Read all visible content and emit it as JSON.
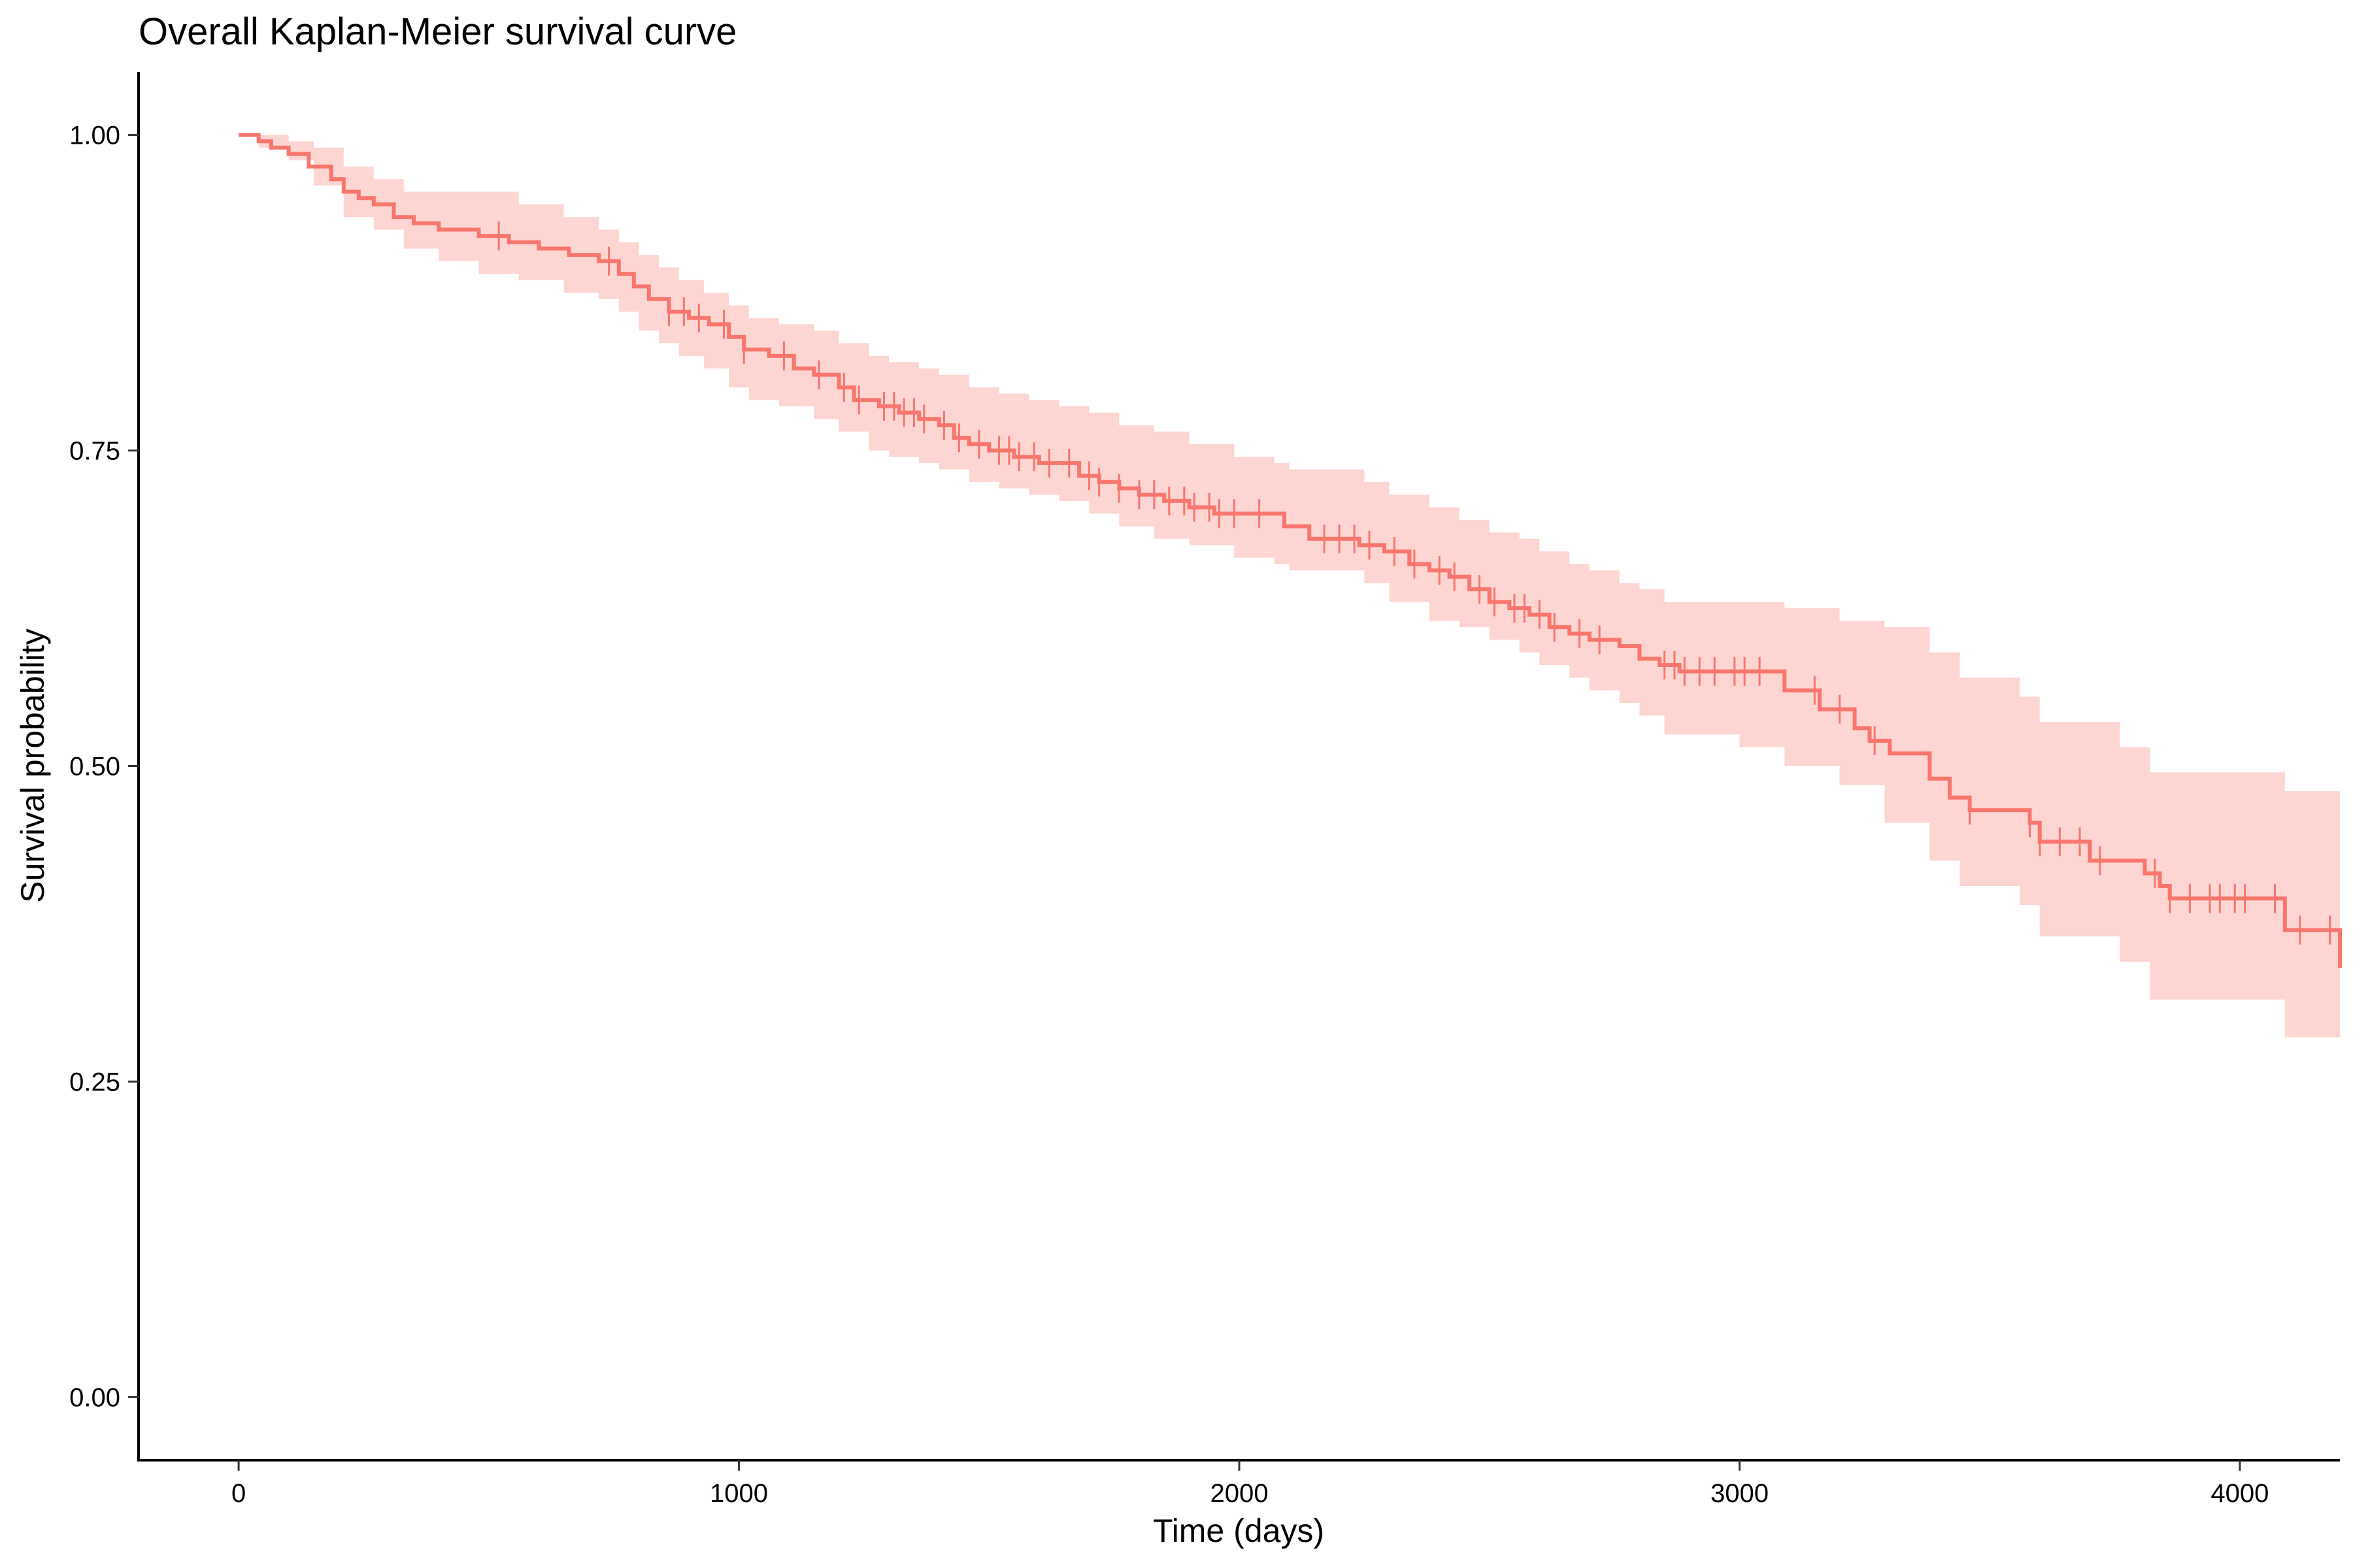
{
  "chart_data": {
    "type": "line",
    "chart_style": "kaplan-meier-step-with-confidence-band",
    "title": "Overall Kaplan-Meier survival curve",
    "xlabel": "Time (days)",
    "ylabel": "Survival probability",
    "xlim": [
      -200,
      4200
    ],
    "ylim": [
      -0.05,
      1.05
    ],
    "x_ticks": [
      0,
      1000,
      2000,
      3000,
      4000
    ],
    "x_tick_labels": [
      "0",
      "1000",
      "2000",
      "3000",
      "4000"
    ],
    "y_ticks": [
      0,
      0.25,
      0.5,
      0.75,
      1
    ],
    "y_tick_labels": [
      "0.00",
      "0.25",
      "0.50",
      "0.75",
      "1.00"
    ],
    "grid": false,
    "legend": "none",
    "line_color": "#F8766D",
    "band_color": "#FDD5D2",
    "series": [
      {
        "survival": {
          "x": [
            0,
            40,
            65,
            100,
            140,
            185,
            210,
            240,
            270,
            310,
            350,
            400,
            480,
            540,
            600,
            660,
            720,
            760,
            790,
            820,
            860,
            900,
            940,
            980,
            1010,
            1060,
            1110,
            1150,
            1200,
            1230,
            1280,
            1320,
            1360,
            1400,
            1430,
            1460,
            1500,
            1550,
            1600,
            1640,
            1680,
            1720,
            1760,
            1800,
            1850,
            1900,
            1950,
            2000,
            2050,
            2090,
            2140,
            2190,
            2240,
            2290,
            2340,
            2380,
            2420,
            2460,
            2500,
            2540,
            2580,
            2620,
            2660,
            2700,
            2760,
            2800,
            2840,
            2880,
            3000,
            3090,
            3160,
            3230,
            3260,
            3300,
            3380,
            3420,
            3460,
            3580,
            3600,
            3700,
            3810,
            3840,
            3860,
            4000,
            4090,
            4200
          ],
          "y": [
            1,
            0.995,
            0.99,
            0.985,
            0.975,
            0.965,
            0.955,
            0.95,
            0.945,
            0.935,
            0.93,
            0.925,
            0.92,
            0.915,
            0.91,
            0.905,
            0.9,
            0.89,
            0.88,
            0.87,
            0.86,
            0.855,
            0.85,
            0.84,
            0.83,
            0.825,
            0.815,
            0.81,
            0.8,
            0.79,
            0.785,
            0.78,
            0.775,
            0.77,
            0.76,
            0.755,
            0.75,
            0.745,
            0.74,
            0.74,
            0.73,
            0.725,
            0.72,
            0.715,
            0.71,
            0.705,
            0.7,
            0.7,
            0.7,
            0.69,
            0.68,
            0.68,
            0.675,
            0.67,
            0.66,
            0.655,
            0.65,
            0.64,
            0.63,
            0.625,
            0.62,
            0.61,
            0.605,
            0.6,
            0.595,
            0.585,
            0.58,
            0.575,
            0.575,
            0.56,
            0.545,
            0.53,
            0.52,
            0.51,
            0.49,
            0.475,
            0.465,
            0.455,
            0.44,
            0.425,
            0.415,
            0.405,
            0.395,
            0.395,
            0.37,
            0.34
          ]
        },
        "lower": {
          "x": [
            0,
            40,
            100,
            150,
            210,
            270,
            330,
            400,
            480,
            560,
            650,
            720,
            760,
            800,
            840,
            880,
            930,
            980,
            1020,
            1080,
            1150,
            1200,
            1260,
            1300,
            1360,
            1400,
            1460,
            1520,
            1580,
            1640,
            1700,
            1760,
            1830,
            1900,
            1990,
            2070,
            2100,
            2250,
            2300,
            2380,
            2440,
            2500,
            2560,
            2600,
            2660,
            2700,
            2760,
            2800,
            2850,
            3000,
            3090,
            3200,
            3290,
            3380,
            3440,
            3560,
            3600,
            3760,
            3820,
            4090,
            4200
          ],
          "y": [
            1,
            0.99,
            0.98,
            0.96,
            0.935,
            0.925,
            0.91,
            0.9,
            0.89,
            0.885,
            0.875,
            0.87,
            0.86,
            0.845,
            0.835,
            0.825,
            0.815,
            0.8,
            0.79,
            0.785,
            0.775,
            0.765,
            0.75,
            0.745,
            0.74,
            0.735,
            0.725,
            0.72,
            0.715,
            0.71,
            0.7,
            0.69,
            0.68,
            0.675,
            0.665,
            0.66,
            0.655,
            0.645,
            0.63,
            0.615,
            0.61,
            0.6,
            0.59,
            0.58,
            0.57,
            0.56,
            0.55,
            0.54,
            0.525,
            0.515,
            0.5,
            0.485,
            0.455,
            0.425,
            0.405,
            0.39,
            0.365,
            0.345,
            0.315,
            0.285,
            0.25
          ]
        },
        "upper": {
          "x": [
            0,
            40,
            100,
            150,
            210,
            270,
            330,
            400,
            560,
            650,
            720,
            760,
            800,
            840,
            880,
            930,
            980,
            1020,
            1080,
            1150,
            1200,
            1260,
            1300,
            1360,
            1400,
            1460,
            1520,
            1580,
            1640,
            1700,
            1760,
            1830,
            1900,
            1990,
            2070,
            2100,
            2250,
            2300,
            2380,
            2440,
            2500,
            2560,
            2600,
            2660,
            2700,
            2760,
            2800,
            2850,
            3000,
            3090,
            3200,
            3290,
            3380,
            3440,
            3560,
            3600,
            3760,
            3820,
            4090,
            4200
          ],
          "y": [
            1,
            1,
            0.995,
            0.99,
            0.975,
            0.965,
            0.955,
            0.955,
            0.945,
            0.935,
            0.925,
            0.915,
            0.905,
            0.895,
            0.885,
            0.875,
            0.865,
            0.855,
            0.85,
            0.845,
            0.835,
            0.825,
            0.82,
            0.815,
            0.81,
            0.8,
            0.795,
            0.79,
            0.785,
            0.78,
            0.77,
            0.765,
            0.755,
            0.745,
            0.74,
            0.735,
            0.725,
            0.715,
            0.705,
            0.695,
            0.685,
            0.68,
            0.67,
            0.66,
            0.655,
            0.645,
            0.64,
            0.63,
            0.63,
            0.625,
            0.615,
            0.61,
            0.59,
            0.57,
            0.555,
            0.535,
            0.515,
            0.495,
            0.48,
            0.46
          ]
        },
        "censor_times": [
          520,
          740,
          860,
          890,
          920,
          970,
          1010,
          1090,
          1160,
          1210,
          1240,
          1290,
          1310,
          1330,
          1350,
          1370,
          1410,
          1440,
          1480,
          1520,
          1540,
          1560,
          1590,
          1620,
          1660,
          1700,
          1720,
          1760,
          1800,
          1830,
          1860,
          1890,
          1910,
          1940,
          1960,
          1990,
          2040,
          2170,
          2200,
          2230,
          2260,
          2310,
          2350,
          2400,
          2430,
          2480,
          2510,
          2550,
          2570,
          2600,
          2630,
          2680,
          2720,
          2850,
          2870,
          2890,
          2920,
          2950,
          2990,
          3010,
          3040,
          3150,
          3200,
          3270,
          3460,
          3580,
          3600,
          3640,
          3680,
          3720,
          3830,
          3860,
          3900,
          3940,
          3960,
          3990,
          4010,
          4070,
          4120,
          4180
        ]
      }
    ]
  }
}
